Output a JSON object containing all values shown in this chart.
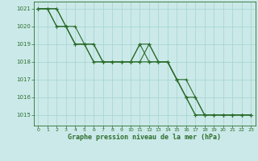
{
  "title": "Graphe pression niveau de la mer (hPa)",
  "background_color": "#cbe9e9",
  "grid_color": "#a8d8d0",
  "line_color": "#2d6e2d",
  "xlim": [
    -0.5,
    23.5
  ],
  "ylim": [
    1014.4,
    1021.4
  ],
  "yticks": [
    1015,
    1016,
    1017,
    1018,
    1019,
    1020,
    1021
  ],
  "xticks": [
    0,
    1,
    2,
    3,
    4,
    5,
    6,
    7,
    8,
    9,
    10,
    11,
    12,
    13,
    14,
    15,
    16,
    17,
    18,
    19,
    20,
    21,
    22,
    23
  ],
  "xtick_labels": [
    "0",
    "1",
    "2",
    "3",
    "4",
    "5",
    "6",
    "7",
    "8",
    "9",
    "10",
    "11",
    "12",
    "13",
    "14",
    "15",
    "16",
    "17",
    "18",
    "19",
    "20",
    "21",
    "22",
    "23"
  ],
  "series": [
    [
      1021,
      1021,
      1021,
      1020,
      1020,
      1019,
      1019,
      1018,
      1018,
      1018,
      1018,
      1019,
      1019,
      1018,
      1018,
      1017,
      1016,
      1016,
      1015,
      1015,
      1015,
      1015,
      1015,
      1015
    ],
    [
      1021,
      1021,
      1021,
      1020,
      1019,
      1019,
      1019,
      1018,
      1018,
      1018,
      1018,
      1019,
      1018,
      1018,
      1018,
      1017,
      1016,
      1015,
      1015,
      1015,
      1015,
      1015,
      1015,
      1015
    ],
    [
      1021,
      1021,
      1020,
      1020,
      1019,
      1019,
      1018,
      1018,
      1018,
      1018,
      1018,
      1018,
      1018,
      1018,
      1018,
      1017,
      1016,
      1015,
      1015,
      1015,
      1015,
      1015,
      1015,
      1015
    ],
    [
      1021,
      1021,
      1020,
      1020,
      1019,
      1019,
      1018,
      1018,
      1018,
      1018,
      1018,
      1018,
      1019,
      1018,
      1018,
      1017,
      1017,
      1016,
      1015,
      1015,
      1015,
      1015,
      1015,
      1015
    ]
  ]
}
